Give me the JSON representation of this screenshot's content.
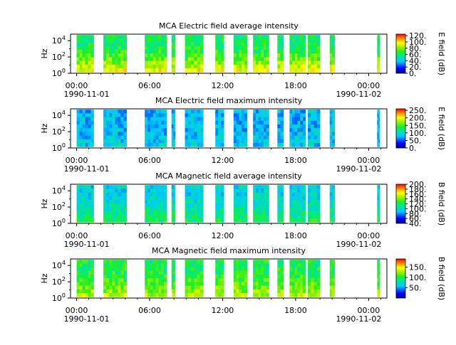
{
  "chart_data": [
    {
      "type": "heatmap",
      "title": "MCA  Electric field average intensity",
      "ylabel": "Hz",
      "colorbar_label": "E field (dB)",
      "colorbar_ticks": [
        "0.",
        "20.",
        "40.",
        "60.",
        "80.",
        "100.",
        "120."
      ],
      "colorbar_range": [
        0,
        125
      ],
      "y_ticks": [
        "10^0",
        "10^2",
        "10^4"
      ],
      "y_scale": "log",
      "x_tick_labels": [
        "00:00",
        "06:00",
        "12:00",
        "18:00",
        "00:00"
      ],
      "x_date_labels": [
        "1990-11-01",
        "1990-11-02"
      ],
      "x_range_hours": [
        -0.5,
        25.5
      ],
      "blocks_hours": [
        [
          0.0,
          1.4
        ],
        [
          2.2,
          4.1
        ],
        [
          5.6,
          7.4
        ],
        [
          7.8,
          8.1
        ],
        [
          8.9,
          10.4
        ],
        [
          11.4,
          12.1
        ],
        [
          12.9,
          14.0
        ],
        [
          14.5,
          15.8
        ],
        [
          16.5,
          17.0
        ],
        [
          17.5,
          18.8
        ],
        [
          19.0,
          20.0
        ],
        [
          20.8,
          21.2
        ],
        [
          24.7,
          24.9
        ]
      ],
      "base_level": 60,
      "low_freq_level": 95
    },
    {
      "type": "heatmap",
      "title": "MCA  Electric field maximum intensity",
      "ylabel": "Hz",
      "colorbar_label": "E field (dB)",
      "colorbar_ticks": [
        "0.",
        "50.",
        "100.",
        "150.",
        "200.",
        "250."
      ],
      "colorbar_range": [
        0,
        260
      ],
      "y_ticks": [
        "10^0",
        "10^2",
        "10^4"
      ],
      "y_scale": "log",
      "x_tick_labels": [
        "00:00",
        "06:00",
        "12:00",
        "18:00",
        "00:00"
      ],
      "x_date_labels": [
        "1990-11-01",
        "1990-11-02"
      ],
      "x_range_hours": [
        -0.5,
        25.5
      ],
      "blocks_hours": [
        [
          0.0,
          1.4
        ],
        [
          2.2,
          4.1
        ],
        [
          5.6,
          7.4
        ],
        [
          7.8,
          8.1
        ],
        [
          8.9,
          10.4
        ],
        [
          11.4,
          12.1
        ],
        [
          12.9,
          14.0
        ],
        [
          14.5,
          15.8
        ],
        [
          16.5,
          17.0
        ],
        [
          17.5,
          18.8
        ],
        [
          19.0,
          20.0
        ],
        [
          20.8,
          21.2
        ],
        [
          24.7,
          24.9
        ]
      ],
      "base_level": 75,
      "low_freq_level": 85
    },
    {
      "type": "heatmap",
      "title": "MCA  Magnetic field average intensity",
      "ylabel": "Hz",
      "colorbar_label": "B field (dB)",
      "colorbar_ticks": [
        "40.",
        "60.",
        "80.",
        "100.",
        "120.",
        "140.",
        "160.",
        "180.",
        "200."
      ],
      "colorbar_range": [
        40,
        200
      ],
      "y_ticks": [
        "10^0",
        "10^2",
        "10^4"
      ],
      "y_scale": "log",
      "x_tick_labels": [
        "00:00",
        "06:00",
        "12:00",
        "18:00",
        "00:00"
      ],
      "x_date_labels": [
        "1990-11-01",
        "1990-11-02"
      ],
      "x_range_hours": [
        -0.5,
        25.5
      ],
      "blocks_hours": [
        [
          0.0,
          1.4
        ],
        [
          2.2,
          4.1
        ],
        [
          5.6,
          7.4
        ],
        [
          7.8,
          8.1
        ],
        [
          8.9,
          10.4
        ],
        [
          11.4,
          12.1
        ],
        [
          12.9,
          14.0
        ],
        [
          14.5,
          15.8
        ],
        [
          16.5,
          17.0
        ],
        [
          17.5,
          18.8
        ],
        [
          19.0,
          20.0
        ],
        [
          20.8,
          21.2
        ],
        [
          24.7,
          24.9
        ]
      ],
      "base_level": 95,
      "low_freq_level": 120
    },
    {
      "type": "heatmap",
      "title": "MCA  Magnetic field maximum intensity",
      "ylabel": "Hz",
      "colorbar_label": "B field (dB)",
      "colorbar_ticks": [
        "50.",
        "100.",
        "150."
      ],
      "colorbar_range": [
        0,
        190
      ],
      "y_ticks": [
        "10^0",
        "10^2",
        "10^4"
      ],
      "y_scale": "log",
      "x_tick_labels": [
        "00:00",
        "06:00",
        "12:00",
        "18:00",
        "00:00"
      ],
      "x_date_labels": [
        "1990-11-01",
        "1990-11-02"
      ],
      "x_range_hours": [
        -0.5,
        25.5
      ],
      "blocks_hours": [
        [
          0.0,
          1.4
        ],
        [
          2.2,
          4.1
        ],
        [
          5.6,
          7.4
        ],
        [
          7.8,
          8.1
        ],
        [
          8.9,
          10.4
        ],
        [
          11.4,
          12.1
        ],
        [
          12.9,
          14.0
        ],
        [
          14.5,
          15.8
        ],
        [
          16.5,
          17.0
        ],
        [
          17.5,
          18.8
        ],
        [
          19.0,
          20.0
        ],
        [
          20.8,
          21.2
        ],
        [
          24.7,
          24.9
        ]
      ],
      "base_level": 95,
      "low_freq_level": 130
    }
  ]
}
